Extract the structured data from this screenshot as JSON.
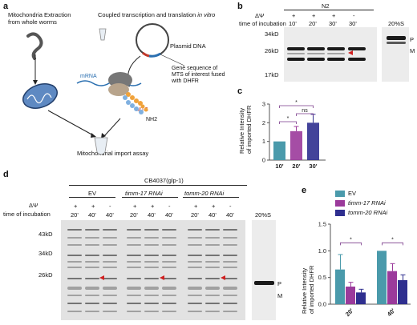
{
  "panel_labels": {
    "a": "a",
    "b": "b",
    "c": "c",
    "d": "d",
    "e": "e"
  },
  "panel_a": {
    "mito_extraction": "Mitochondria Extraction\nfrom whole worms",
    "coupled_title_1": "Coupled transcription and translation ",
    "coupled_title_2": "in vitro",
    "plasmid": "Plasmid DNA",
    "gene_seq": "Gene sequence of\nMTS of interest fused\nwith DHFR",
    "mrna": "mRNA",
    "mts": "MTS",
    "nh2": "NH2",
    "assay": "Mitochondrial import assay"
  },
  "panel_b": {
    "strain": "N2",
    "dpsi": "ΔΨ",
    "time_label": "time of incubation",
    "signs": [
      "+",
      "+",
      "+",
      "-",
      ""
    ],
    "times": [
      "10'",
      "20'",
      "30'",
      "30'",
      "20%S"
    ],
    "mw": [
      "34kD",
      "26kD",
      "17kD"
    ],
    "p": "P",
    "m": "M"
  },
  "panel_c": {
    "ylabel_1": "Relative Intensity",
    "ylabel_2": "of imported DHFR",
    "ticks": [
      "0",
      "1",
      "2",
      "3"
    ],
    "sig": [
      "*",
      "ns",
      "*"
    ]
  },
  "panel_d": {
    "strain": "CB4037(glp-1)",
    "dpsi": "ΔΨ",
    "time_label": "time of incubation",
    "groups": [
      "EV",
      "timm-17 RNAi",
      "tomm-20 RNAi"
    ],
    "signs": [
      "+",
      "+",
      "-",
      "+",
      "+",
      "-",
      "+",
      "+",
      "-"
    ],
    "times": [
      "20'",
      "40'",
      "40'",
      "20'",
      "40'",
      "40'",
      "20'",
      "40'",
      "40'",
      "20%S"
    ],
    "mw": [
      "43kD",
      "34kD",
      "26kD"
    ],
    "p": "P",
    "m": "M"
  },
  "panel_e": {
    "ylabel_1": "Relative Intensity",
    "ylabel_2": "of imported DHFR",
    "ticks": [
      "0.0",
      "0.5",
      "1.0",
      "1.5"
    ],
    "sig": [
      "*",
      "*"
    ]
  },
  "colors": {
    "ev": "#4a9aab",
    "timm17": "#9b3a9b",
    "tomm20": "#2f2f8f",
    "c10": "#4a9aab",
    "c20": "#9b3a9b",
    "c30": "#2f2f8f"
  },
  "chart_data": [
    {
      "type": "bar",
      "categories": [
        "10'",
        "20'",
        "30'"
      ],
      "values": [
        1.0,
        1.55,
        2.0
      ],
      "errors": [
        0.0,
        0.25,
        0.45
      ],
      "ylabel": "Relative Intensity of imported DHFR",
      "ylim": [
        0,
        3
      ],
      "annotations": [
        "*",
        "ns",
        "*"
      ]
    },
    {
      "type": "bar",
      "categories": [
        "20'",
        "40'"
      ],
      "series": [
        {
          "name": "EV",
          "values": [
            0.65,
            1.0
          ],
          "errors": [
            0.28,
            0.0
          ]
        },
        {
          "name": "timm-17 RNAi",
          "values": [
            0.33,
            0.62
          ],
          "errors": [
            0.08,
            0.14
          ]
        },
        {
          "name": "tomm-20 RNAi",
          "values": [
            0.22,
            0.45
          ],
          "errors": [
            0.06,
            0.1
          ]
        }
      ],
      "ylabel": "Relative Intensity of imported DHFR",
      "ylim": [
        0,
        1.5
      ],
      "annotations": [
        "*",
        "*"
      ]
    }
  ]
}
